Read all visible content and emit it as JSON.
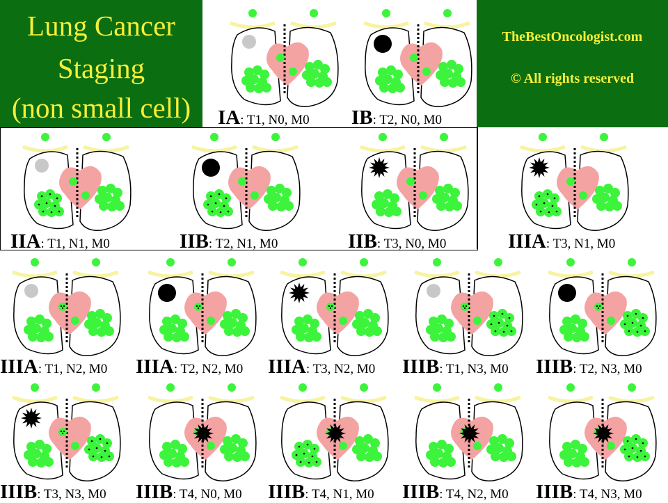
{
  "title": {
    "line1": "Lung Cancer",
    "line2": "Staging",
    "line3": "(non small cell)"
  },
  "brand": {
    "site": "TheBestOncologist.com",
    "rights": "© All rights reserved"
  },
  "colors": {
    "title_bg": "#0b6e11",
    "title_text": "#f4ef3a",
    "node": "#3cf43c",
    "heart": "#f4a3a3",
    "small_tumor": "#c8c8c8",
    "large_tumor": "#000000"
  },
  "panels": [
    {
      "stage": "IA",
      "tnm": ": T1, N0, M0",
      "t": "T1",
      "n": "N0"
    },
    {
      "stage": "IB",
      "tnm": ": T2, N0, M0",
      "t": "T2",
      "n": "N0"
    },
    {
      "stage": "IIA",
      "tnm": ": T1, N1, M0",
      "t": "T1",
      "n": "N1"
    },
    {
      "stage": "IIB",
      "tnm": ": T2, N1, M0",
      "t": "T2",
      "n": "N1"
    },
    {
      "stage": "IIB",
      "tnm": ": T3, N0, M0",
      "t": "T3",
      "n": "N0"
    },
    {
      "stage": "IIIA",
      "tnm": ": T3, N1, M0",
      "t": "T3",
      "n": "N1"
    },
    {
      "stage": "IIIA",
      "tnm": ": T1, N2, M0",
      "t": "T1",
      "n": "N2"
    },
    {
      "stage": "IIIA",
      "tnm": ": T2, N2, M0",
      "t": "T2",
      "n": "N2"
    },
    {
      "stage": "IIIA",
      "tnm": ": T3, N2, M0",
      "t": "T3",
      "n": "N2"
    },
    {
      "stage": "IIIB",
      "tnm": ": T1, N3, M0",
      "t": "T1",
      "n": "N3"
    },
    {
      "stage": "IIIB",
      "tnm": ": T2, N3, M0",
      "t": "T2",
      "n": "N3"
    },
    {
      "stage": "IIIB",
      "tnm": ": T3, N3, M0",
      "t": "T3",
      "n": "N3"
    },
    {
      "stage": "IIIB",
      "tnm": ": T4, N0, M0",
      "t": "T4",
      "n": "N0"
    },
    {
      "stage": "IIIB",
      "tnm": ": T4, N1, M0",
      "t": "T4",
      "n": "N1"
    },
    {
      "stage": "IIIB",
      "tnm": ": T4, N2, M0",
      "t": "T4",
      "n": "N2"
    },
    {
      "stage": "IIIB",
      "tnm": ": T4, N3, M0",
      "t": "T4",
      "n": "N3"
    }
  ]
}
